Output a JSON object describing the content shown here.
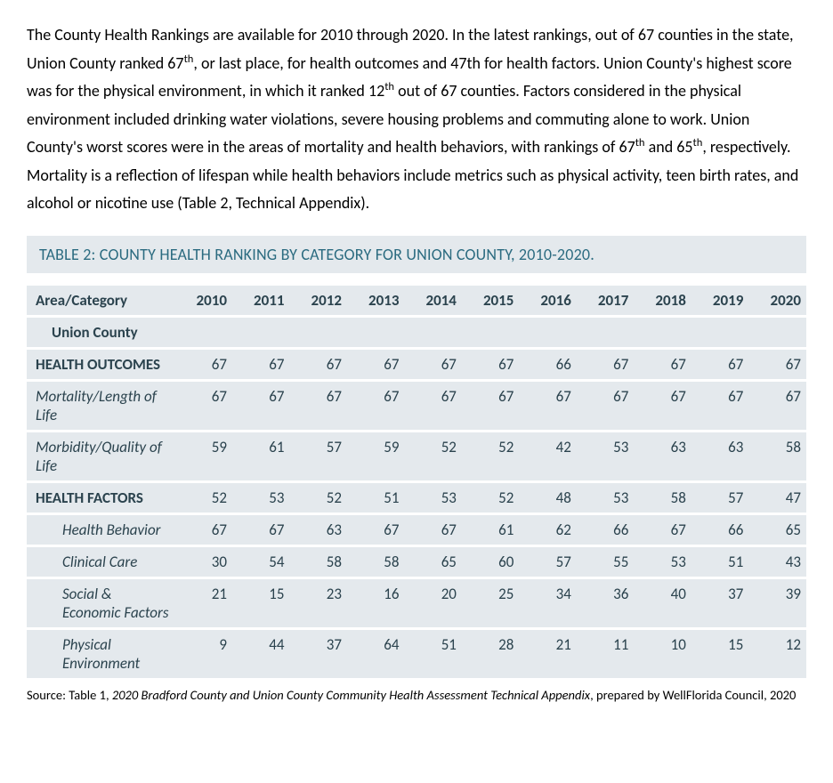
{
  "paragraph_html": "The County Health Rankings are available for 2010 through 2020. In the latest rankings, out of 67 counties in the state, Union County ranked 67<sup>th</sup>, or last place, for health outcomes and 47th for health factors. Union County's highest score was for the physical environment, in which it ranked 12<sup>th</sup> out of 67 counties. Factors considered in the physical environment included drinking water violations, severe housing problems and commuting alone to work. Union County's worst scores were in the areas of mortality and health behaviors, with rankings of 67<sup>th</sup> and 65<sup>th</sup>, respectively. Mortality is a reflection of lifespan while health behaviors include metrics such as physical activity, teen birth rates, and alcohol or nicotine use (Table 2, Technical Appendix).",
  "table_title": "TABLE 2: COUNTY HEALTH RANKING BY CATEGORY FOR UNION COUNTY, 2010-2020.",
  "table": {
    "corner": "Area/Category",
    "years": [
      "2010",
      "2011",
      "2012",
      "2013",
      "2014",
      "2015",
      "2016",
      "2017",
      "2018",
      "2019",
      "2020"
    ],
    "rows": [
      {
        "label": "Union County",
        "values": [
          "",
          "",
          "",
          "",
          "",
          "",
          "",
          "",
          "",
          "",
          ""
        ],
        "bold": true,
        "italic": false,
        "indent": 1
      },
      {
        "label": "HEALTH OUTCOMES",
        "values": [
          67,
          67,
          67,
          67,
          67,
          67,
          66,
          67,
          67,
          67,
          67
        ],
        "bold": true,
        "italic": false,
        "indent": 0
      },
      {
        "label": "Mortality/Length of Life",
        "values": [
          67,
          67,
          67,
          67,
          67,
          67,
          67,
          67,
          67,
          67,
          67
        ],
        "bold": false,
        "italic": true,
        "indent": 0
      },
      {
        "label": "Morbidity/Quality of Life",
        "values": [
          59,
          61,
          57,
          59,
          52,
          52,
          42,
          53,
          63,
          63,
          58
        ],
        "bold": false,
        "italic": true,
        "indent": 0
      },
      {
        "label": "HEALTH FACTORS",
        "values": [
          52,
          53,
          52,
          51,
          53,
          52,
          48,
          53,
          58,
          57,
          47
        ],
        "bold": true,
        "italic": false,
        "indent": 0
      },
      {
        "label": "Health Behavior",
        "values": [
          67,
          67,
          63,
          67,
          67,
          61,
          62,
          66,
          67,
          66,
          65
        ],
        "bold": false,
        "italic": true,
        "indent": 2
      },
      {
        "label": "Clinical Care",
        "values": [
          30,
          54,
          58,
          58,
          65,
          60,
          57,
          55,
          53,
          51,
          43
        ],
        "bold": false,
        "italic": true,
        "indent": 2
      },
      {
        "label": "Social & Economic Factors",
        "values": [
          21,
          15,
          23,
          16,
          20,
          25,
          34,
          36,
          40,
          37,
          39
        ],
        "bold": false,
        "italic": true,
        "indent": 2
      },
      {
        "label": "Physical Environment",
        "values": [
          9,
          44,
          37,
          64,
          51,
          28,
          21,
          11,
          10,
          15,
          12
        ],
        "bold": false,
        "italic": true,
        "indent": 2
      }
    ],
    "colors": {
      "row_bg": "#e4e9ed",
      "row_gap": "#ffffff",
      "text": "#2b434e",
      "title_text": "#2b6b80"
    }
  },
  "source": {
    "prefix": "Source: Table 1, ",
    "italic": "2020 Bradford County and Union County Community Health Assessment Technical Appendix",
    "suffix": ", prepared by WellFlorida Council, 2020"
  }
}
